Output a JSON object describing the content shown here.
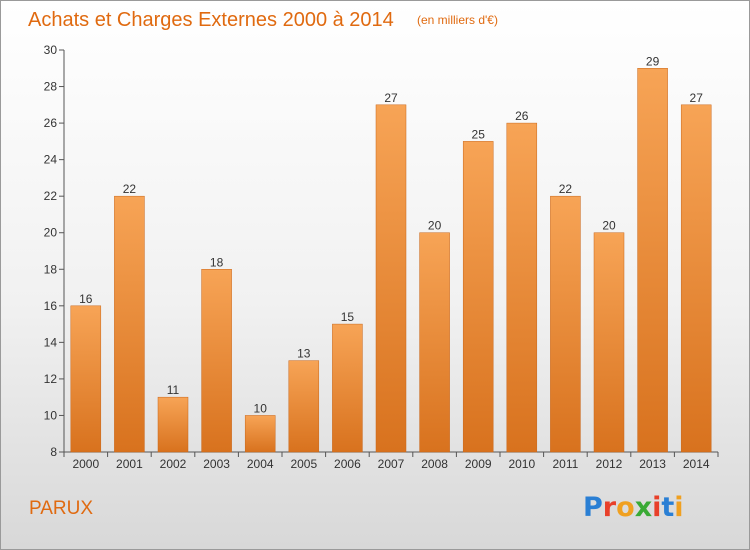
{
  "chart_data": {
    "type": "bar",
    "title": "Achats et Charges Externes 2000 à 2014",
    "subtitle": "(en milliers d'€)",
    "categories": [
      "2000",
      "2001",
      "2002",
      "2003",
      "2004",
      "2005",
      "2006",
      "2007",
      "2008",
      "2009",
      "2010",
      "2011",
      "2012",
      "2013",
      "2014"
    ],
    "values": [
      16,
      22,
      11,
      18,
      10,
      13,
      15,
      27,
      20,
      25,
      26,
      22,
      20,
      29,
      27
    ],
    "ylim": [
      8,
      30
    ],
    "yticks": [
      8,
      10,
      12,
      14,
      16,
      18,
      20,
      22,
      24,
      26,
      28,
      30
    ],
    "grid": false,
    "bar_color": "#ee8a2c"
  },
  "commune": "PARUX",
  "logo": {
    "text": "Proxiti",
    "letter_colors": [
      "#2a7fd4",
      "#e8402a",
      "#f0a020",
      "#3aaa35",
      "#e8402a",
      "#2a7fd4",
      "#f0a020"
    ]
  }
}
